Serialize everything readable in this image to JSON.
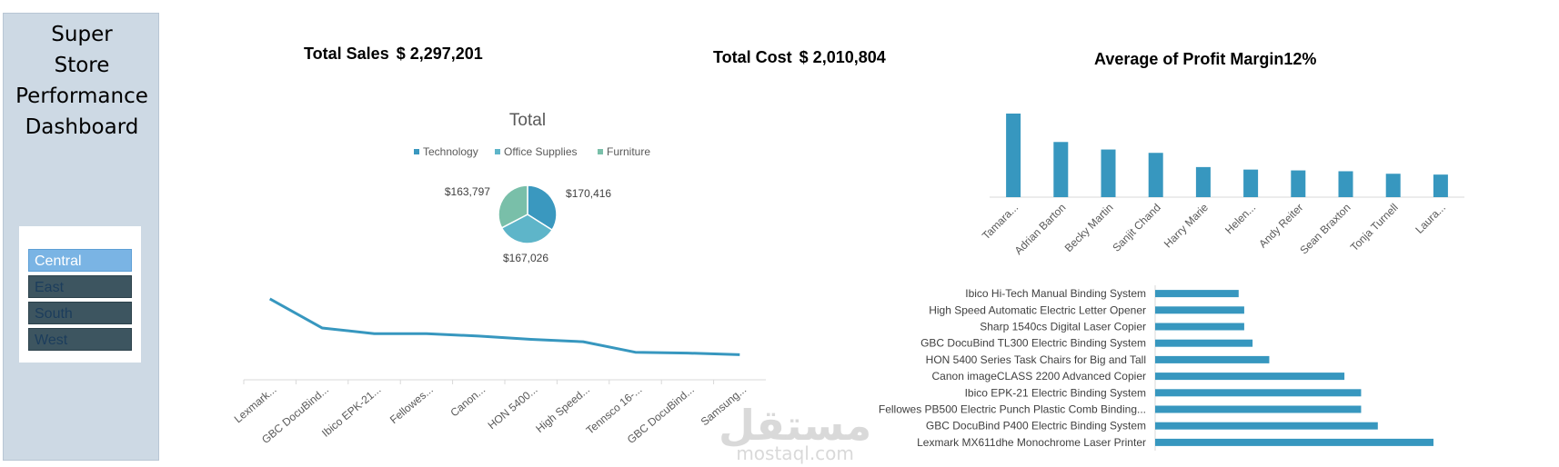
{
  "sidebar": {
    "title_lines": [
      "Super",
      "Store",
      "Performance",
      "Dashboard"
    ],
    "slicer": [
      {
        "label": "Central",
        "selected": true
      },
      {
        "label": "East",
        "selected": false
      },
      {
        "label": "South",
        "selected": false
      },
      {
        "label": "West",
        "selected": false
      }
    ]
  },
  "kpis": {
    "sales": {
      "label": "Total Sales",
      "value": "$ 2,297,201"
    },
    "cost": {
      "label": "Total Cost",
      "value": "$ 2,010,804"
    },
    "margin": {
      "label": "Average of Profit Margin",
      "value": "12%"
    }
  },
  "colors": {
    "accent": "#3797bf",
    "tech": "#3a98bf",
    "office": "#5eb5c9",
    "furniture": "#79bfa9"
  },
  "watermark": {
    "arabic": "مستقل",
    "latin": "mostaql.com"
  },
  "chart_data": [
    {
      "type": "pie",
      "title": "Total",
      "legend_position": "top",
      "categories": [
        "Technology",
        "Office Supplies",
        "Furniture"
      ],
      "values": [
        170416,
        167026,
        163797
      ],
      "labels": [
        "$170,416",
        "$167,026",
        "$163,797"
      ]
    },
    {
      "type": "line",
      "categories": [
        "Lexmark...",
        "GBC DocuBind...",
        "Ibico EPK-21...",
        "Fellowes...",
        "Canon...",
        "HON 5400...",
        "High Speed...",
        "Tennsco 16-...",
        "GBC DocuBind...",
        "Samsung..."
      ],
      "values": [
        100,
        64,
        57,
        57,
        54,
        50,
        47,
        34,
        33,
        31
      ],
      "ylim": [
        0,
        110
      ],
      "grid": false
    },
    {
      "type": "bar",
      "categories": [
        "Tamara...",
        "Adrian Barton",
        "Becky Martin",
        "Sanjit Chand",
        "Harry Marie",
        "Helen...",
        "Andy Reiter",
        "Sean Braxton",
        "Tonja Turnell",
        "Laura..."
      ],
      "values": [
        100,
        66,
        57,
        53,
        36,
        33,
        32,
        31,
        28,
        27
      ],
      "ylim": [
        0,
        100
      ],
      "grid": false
    },
    {
      "type": "bar",
      "orientation": "horizontal",
      "categories": [
        "Ibico Hi-Tech Manual Binding System",
        "High Speed Automatic Electric Letter Opener",
        "Sharp 1540cs Digital Laser Copier",
        "GBC DocuBind TL300 Electric Binding System",
        "HON 5400 Series Task Chairs for Big and Tall",
        "Canon imageCLASS 2200 Advanced Copier",
        "Ibico EPK-21 Electric Binding System",
        "Fellowes PB500 Electric Punch Plastic Comb Binding...",
        "GBC DocuBind P400 Electric Binding System",
        "Lexmark MX611dhe Monochrome Laser Printer"
      ],
      "values": [
        30,
        32,
        32,
        35,
        41,
        68,
        74,
        74,
        80,
        100
      ],
      "xlim": [
        0,
        100
      ],
      "grid": false
    }
  ]
}
